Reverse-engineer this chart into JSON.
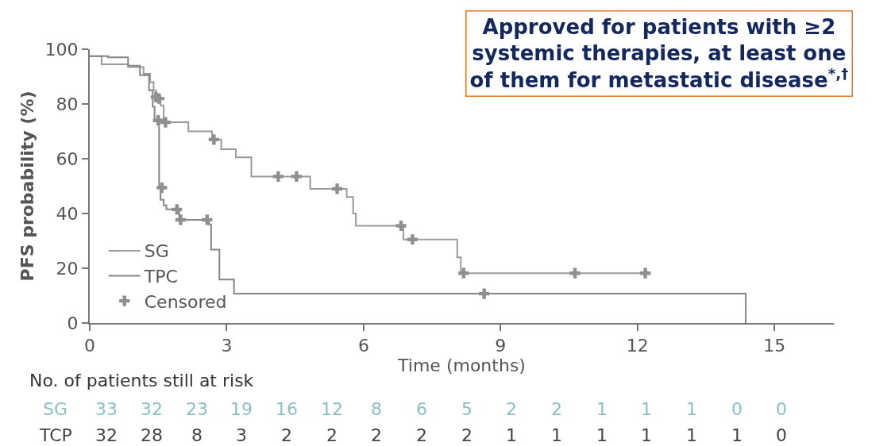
{
  "chart_data": {
    "type": "step",
    "title": "Approved for patients with ≥2 systemic therapies, at least one of them for metastatic disease$^{*,†}$",
    "xlabel": "Time (months)",
    "ylabel": "PFS probability (%)",
    "xlim": [
      0,
      16.3
    ],
    "xticks": [
      0,
      3,
      6,
      9,
      12,
      15
    ],
    "ylim": [
      0,
      100
    ],
    "yticks": [
      0,
      20,
      40,
      60,
      80,
      100
    ],
    "legend": "bottom left",
    "series": [
      {
        "name": "SG",
        "color": "#9a9a9a",
        "x": [
          0,
          0.26,
          0.84,
          1.18,
          1.32,
          1.4,
          1.45,
          1.55,
          1.62,
          2.16,
          2.68,
          2.88,
          3.2,
          3.54,
          4.83,
          5.63,
          5.77,
          5.83,
          6.87,
          8.05,
          8.13,
          12.29
        ],
        "values": [
          97.5,
          94.5,
          93.5,
          91,
          88,
          85,
          82.5,
          79.5,
          73.3,
          70,
          67,
          63.5,
          60.5,
          53.5,
          49,
          46,
          40,
          35.5,
          30.5,
          24,
          18.2,
          18.2
        ]
      },
      {
        "name": "TPC",
        "color": "#858585",
        "x": [
          0,
          0.4,
          0.84,
          1.1,
          1.3,
          1.38,
          1.42,
          1.52,
          1.55,
          1.62,
          1.68,
          1.96,
          2.61,
          2.66,
          2.84,
          3.16,
          14.37,
          14.37
        ],
        "values": [
          97.5,
          97,
          94,
          90.5,
          85,
          79,
          74,
          49.4,
          45,
          43,
          41.5,
          37.7,
          36,
          26.8,
          15.9,
          10.7,
          10.7,
          0
        ]
      },
      {
        "name": "Censored",
        "type": "scatter",
        "marker": "cross",
        "color": "#8f8f8f",
        "x": [
          1.45,
          1.52,
          1.66,
          2.72,
          4.13,
          4.53,
          5.42,
          6.82,
          7.07,
          8.19,
          10.63,
          12.17,
          1.5,
          1.58,
          1.91,
          1.99,
          2.57,
          8.64
        ],
        "values": [
          82.5,
          82,
          73.3,
          67,
          53.5,
          53.5,
          49,
          35.5,
          30.5,
          18.2,
          18.2,
          18.2,
          74,
          49.4,
          41.5,
          37.7,
          37.7,
          10.7
        ]
      }
    ],
    "annotations": [
      "No. of patients still at risk",
      "SG 33 32 23 19 16 12 8 6 5 2 2 1 1 1 0 0",
      "TCP 32 28 8 3 2 2 2 2 2 1 1 1 1 1 1 0"
    ]
  }
}
